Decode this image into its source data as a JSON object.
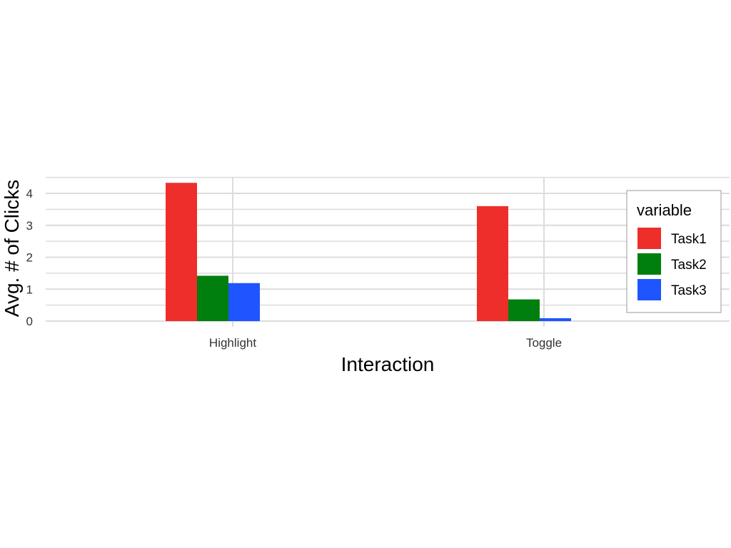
{
  "chart_data": {
    "type": "bar",
    "xlabel": "Interaction",
    "ylabel": "Avg. # of Clicks",
    "categories": [
      "Highlight",
      "Toggle"
    ],
    "series": [
      {
        "name": "Task1",
        "color": "#ee2e2a",
        "values": [
          4.33,
          3.6
        ]
      },
      {
        "name": "Task2",
        "color": "#007f0e",
        "values": [
          1.42,
          0.68
        ]
      },
      {
        "name": "Task3",
        "color": "#1f55fe",
        "values": [
          1.19,
          0.09
        ]
      }
    ],
    "ylim": [
      0,
      4.5
    ],
    "yticks": [
      0,
      1,
      2,
      3,
      4
    ],
    "grid": true,
    "legend": {
      "title": "variable",
      "position": "right"
    }
  }
}
